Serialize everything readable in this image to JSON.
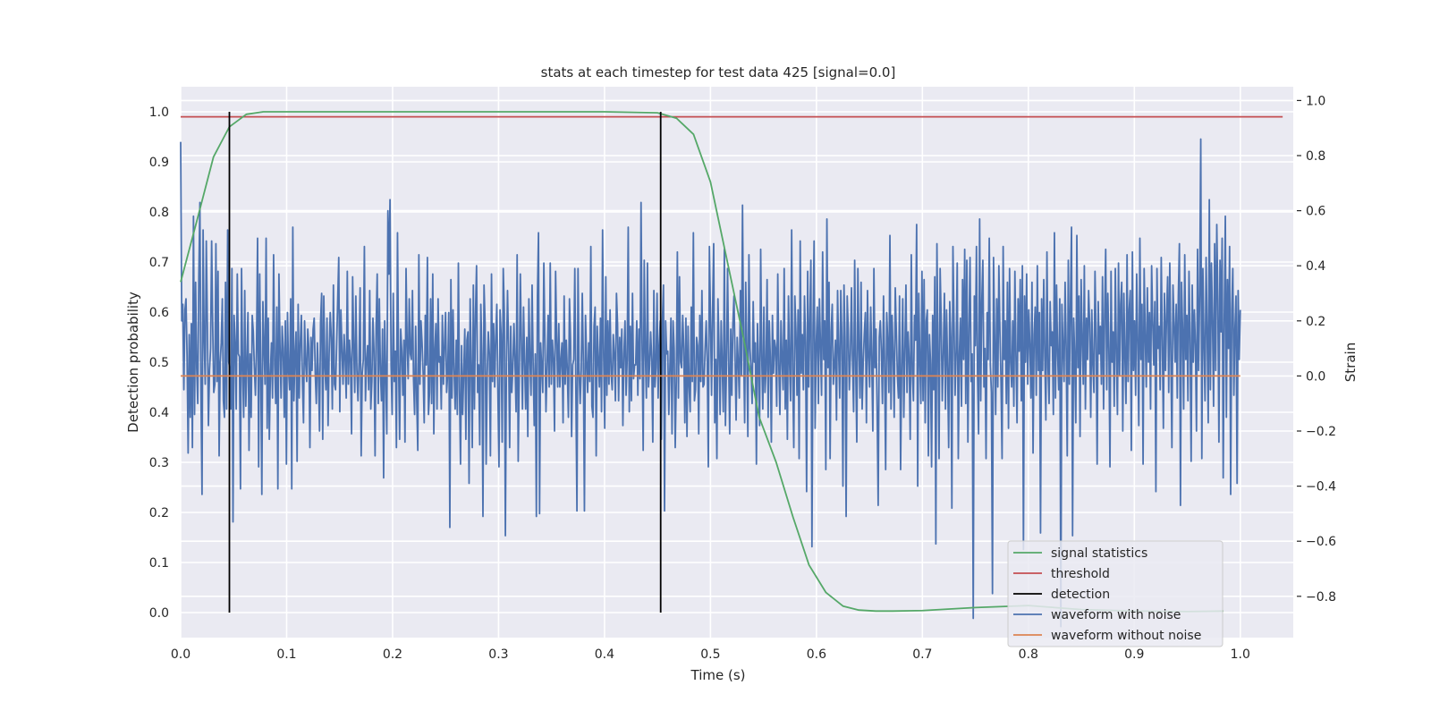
{
  "chart_data": {
    "type": "line",
    "title": "stats at each timestep for test data 425 [signal=0.0]",
    "xlabel": "Time (s)",
    "ylabel_left": "Detection probability",
    "ylabel_right": "Strain",
    "xlim": [
      0.0,
      1.05
    ],
    "ylim_left": [
      -0.05,
      1.05
    ],
    "ylim_right": [
      -0.95,
      1.05
    ],
    "x_ticks": [
      "0.0",
      "0.1",
      "0.2",
      "0.3",
      "0.4",
      "0.5",
      "0.6",
      "0.7",
      "0.8",
      "0.9",
      "1.0"
    ],
    "y_ticks_left": [
      "0.0",
      "0.1",
      "0.2",
      "0.3",
      "0.4",
      "0.5",
      "0.6",
      "0.7",
      "0.8",
      "0.9",
      "1.0"
    ],
    "y_ticks_right": [
      "−0.8",
      "−0.6",
      "−0.4",
      "−0.2",
      "0.0",
      "0.2",
      "0.4",
      "0.6",
      "0.8",
      "1.0"
    ],
    "grid": true,
    "legend_position": "lower-right",
    "legend": [
      {
        "label": "signal statistics",
        "color": "#55a868"
      },
      {
        "label": "threshold",
        "color": "#c44e52"
      },
      {
        "label": "detection",
        "color": "#000000"
      },
      {
        "label": "waveform with noise",
        "color": "#4c72b0"
      },
      {
        "label": "waveform without noise",
        "color": "#dd8452"
      }
    ],
    "series": [
      {
        "name": "signal statistics",
        "axis": "left",
        "color": "#55a868",
        "x": [
          0.0,
          0.015,
          0.031,
          0.046,
          0.062,
          0.078,
          0.1,
          0.2,
          0.3,
          0.4,
          0.45,
          0.468,
          0.484,
          0.5,
          0.515,
          0.531,
          0.546,
          0.562,
          0.578,
          0.593,
          0.609,
          0.625,
          0.64,
          0.656,
          0.672,
          0.7,
          0.75,
          0.8,
          0.85,
          0.9,
          0.95,
          0.984
        ],
        "values": [
          0.66,
          0.78,
          0.91,
          0.97,
          0.995,
          1.0,
          1.0,
          1.0,
          1.0,
          1.0,
          0.998,
          0.987,
          0.955,
          0.86,
          0.71,
          0.55,
          0.39,
          0.3,
          0.19,
          0.095,
          0.04,
          0.013,
          0.005,
          0.003,
          0.003,
          0.004,
          0.01,
          0.014,
          0.006,
          0.003,
          0.002,
          0.003
        ]
      },
      {
        "name": "threshold",
        "axis": "left",
        "color": "#c44e52",
        "x": [
          0.0,
          1.04
        ],
        "values": [
          0.99,
          0.99
        ]
      },
      {
        "name": "waveform with noise",
        "axis": "right",
        "color": "#4c72b0",
        "x_start": 0.0,
        "x_end": 1.0,
        "values": [
          0.85,
          0.2,
          0.26,
          -0.05,
          0.24,
          0.28,
          0.07,
          -0.28,
          0.15,
          -0.15,
          0.19,
          -0.26,
          0.58,
          -0.14,
          0.34,
          0.03,
          -0.1,
          0.36,
          0.63,
          -0.06,
          -0.43,
          0.53,
          0.14,
          -0.03,
          0.49,
          0.19,
          -0.18,
          0.02,
          0.1,
          0.49,
          0.18,
          -0.06,
          -0.03,
          0.48,
          -0.02,
          0.38,
          -0.29,
          0.05,
          0.12,
          0.28,
          -0.09,
          -0.15,
          0.34,
          -0.12,
          0.53,
          0.05,
          0.03,
          -0.12,
          0.39,
          -0.53,
          0.22,
          0.12,
          -0.12,
          0.37,
          0.08,
          0.07,
          -0.41,
          0.39,
          0.03,
          -0.15,
          0.31,
          -0.11,
          0.05,
          0.23,
          -0.27,
          0.08,
          -0.15,
          0.22,
          0.16,
          0.03,
          -0.07,
          0.1,
          0.5,
          -0.33,
          0.37,
          0.02,
          -0.43,
          0.27,
          0.11,
          -0.03,
          0.5,
          -0.19,
          0.21,
          -0.23,
          0.01,
          0.12,
          -0.08,
          0.44,
          0.04,
          -0.1,
          0.25,
          -0.41,
          0.37,
          0.11,
          -0.08,
          0.18,
          0.1,
          -0.15,
          0.2,
          -0.32,
          0.23,
          0.02,
          -0.05,
          0.28,
          -0.41,
          0.54,
          -0.09,
          0.07,
          0.16,
          -0.31,
          0.26,
          -0.08,
          0.12,
          0.22,
          -0.02,
          -0.17,
          0.2,
          0.05,
          -0.02,
          0.17,
          0.1,
          -0.26,
          0.14,
          0.02,
          0.17,
          0.21,
          0.01,
          -0.1,
          0.12,
          0.0,
          -0.2,
          0.2,
          0.3,
          -0.23,
          0.29,
          0.03,
          -0.05,
          0.21,
          -0.18,
          0.08,
          0.23,
          0.14,
          -0.12,
          0.33,
          -0.03,
          -0.05,
          0.11,
          0.27,
          0.43,
          -0.13,
          0.24,
          0.1,
          -0.03,
          0.15,
          0.06,
          -0.08,
          0.38,
          -0.03,
          0.13,
          0.06,
          -0.21,
          0.36,
          0.11,
          -0.06,
          0.29,
          0.02,
          -0.09,
          0.05,
          0.32,
          -0.29,
          0.01,
          0.06,
          0.47,
          -0.09,
          0.05,
          0.11,
          -0.05,
          0.31,
          -0.12,
          -0.02,
          0.21,
          0.09,
          -0.29,
          0.18,
          0.37,
          -0.1,
          0.28,
          0.02,
          -0.09,
          0.17,
          -0.37,
          0.2,
          0.0,
          -0.21,
          0.6,
          0.37,
          0.64,
          0.04,
          -0.14,
          0.3,
          -0.02,
          0.09,
          -0.26,
          0.52,
          0.05,
          -0.23,
          0.17,
          0.09,
          -0.07,
          0.13,
          -0.24,
          0.39,
          0.12,
          -0.01,
          0.28,
          0.08,
          0.06,
          0.31,
          -0.01,
          -0.14,
          0.18,
          -0.09,
          -0.27,
          0.44,
          -0.03,
          0.2,
          0.12,
          0.01,
          -0.17,
          0.22,
          0.04,
          0.43,
          -0.14,
          -0.06,
          0.28,
          -0.1,
          0.37,
          -0.21,
          0.1,
          0.19,
          -0.12,
          0.28,
          0.05,
          0.07,
          -0.12,
          0.22,
          -0.03,
          0.11,
          0.23,
          -0.06,
          0.01,
          0.23,
          -0.55,
          0.35,
          -0.08,
          0.24,
          0.02,
          -0.12,
          0.13,
          -0.14,
          0.41,
          -0.05,
          -0.32,
          0.11,
          -0.14,
          0.01,
          0.17,
          -0.23,
          0.13,
          0.16,
          -0.39,
          0.28,
          0.04,
          -0.26,
          0.33,
          -0.12,
          0.22,
          0.4,
          -0.06,
          0.04,
          -0.25,
          0.26,
          0.08,
          -0.51,
          0.33,
          0.19,
          -0.32,
          0.01,
          0.16,
          0.08,
          -0.29,
          0.37,
          -0.02,
          0.19,
          -0.04,
          0.14,
          0.26,
          -0.06,
          -0.33,
          0.24,
          0.15,
          -0.24,
          0.39,
          0.23,
          -0.58,
          0.06,
          0.31,
          0.1,
          -0.26,
          0.18,
          -0.06,
          0.03,
          0.19,
          0.05,
          -0.13,
          0.44,
          -0.31,
          0.01,
          0.37,
          0.12,
          -0.12,
          0.25,
          0.05,
          -0.12,
          0.14,
          -0.22,
          0.28,
          0.06,
          -0.07,
          0.33,
          0.04,
          -0.18,
          0.08,
          -0.51,
          0.29,
          0.52,
          -0.5,
          0.12,
          0.03,
          -0.06,
          0.41,
          0.13,
          -0.13,
          0.03,
          0.22,
          -0.04,
          0.41,
          -0.03,
          0.13,
          0.06,
          -0.2,
          0.38,
          0.14,
          -0.04,
          0.19,
          -0.04,
          0.06,
          0.12,
          -0.17,
          0.29,
          -0.03,
          0.13,
          0.02,
          -0.15,
          0.28,
          0.13,
          -0.22,
          0.04,
          0.06,
          0.39,
          -0.06,
          -0.49,
          0.39,
          0.02,
          -0.1,
          0.02,
          0.3,
          0.05,
          -0.49,
          0.22,
          0.06,
          -0.06,
          0.12,
          -0.02,
          0.47,
          -0.11,
          -0.15,
          0.18,
          0.25,
          -0.29,
          0.18,
          0.06,
          -0.04,
          0.21,
          -0.13,
          0.53,
          0.07,
          -0.19,
          0.36,
          -0.07,
          0.2,
          -0.03,
          0.24,
          0.01,
          -0.05,
          0.15,
          0.08,
          -0.09,
          0.3,
          0.19,
          -0.09,
          0.14,
          0.03,
          0.17,
          -0.18,
          0.08,
          0.2,
          -0.07,
          0.06,
          0.54,
          -0.13,
          0.18,
          -0.09,
          0.3,
          -0.01,
          0.04,
          0.04,
          0.2,
          -0.07,
          0.17,
          -0.01,
          0.63,
          0.11,
          -0.27,
          0.42,
          0.09,
          -0.08,
          0.41,
          -0.04,
          0.04,
          0.16,
          0.06,
          -0.24,
          0.31,
          -0.04,
          0.03,
          0.3,
          -0.08,
          0.11,
          0.2,
          -0.23,
          0.2,
          0.33,
          -0.49,
          0.2,
          0.08,
          0.09,
          -0.14,
          0.03,
          0.21,
          -0.21,
          0.2,
          0.1,
          -0.26,
          -0.02,
          0.45,
          -0.08,
          0.36,
          0.05,
          0.03,
          0.22,
          0.1,
          -0.17,
          0.21,
          -0.22,
          0.18,
          -0.04,
          -0.13,
          0.25,
          -0.02,
          0.52,
          -0.09,
          -0.05,
          0.14,
          0.11,
          -0.21,
          0.22,
          -0.02,
          0.31,
          -0.04,
          -0.03,
          0.1,
          0.2,
          0.05,
          -0.33,
          0.47,
          0.22,
          -0.07,
          0.24,
          0.48,
          -0.17,
          0.06,
          -0.3,
          0.28,
          0.1,
          -0.14,
          0.2,
          0.04,
          -0.13,
          0.46,
          -0.18,
          0.04,
          0.39,
          0.06,
          -0.21,
          0.17,
          -0.07,
          0.19,
          0.29,
          0.07,
          -0.16,
          0.14,
          0.05,
          -0.08,
          0.31,
          0.0,
          0.62,
          0.12,
          -0.17,
          0.34,
          0.09,
          -0.22,
          0.44,
          0.1,
          0.02,
          -0.1,
          0.27,
          0.05,
          0.12,
          -0.32,
          0.19,
          0.04,
          -0.18,
          0.46,
          0.07,
          -0.12,
          0.25,
          -0.06,
          0.02,
          0.35,
          -0.15,
          0.2,
          0.07,
          -0.24,
          0.22,
          0.01,
          0.13,
          0.1,
          -0.11,
          0.37,
          0.04,
          -0.14,
          0.2,
          0.06,
          -0.05,
          0.39,
          -0.12,
          0.13,
          -0.23,
          0.29,
          0.05,
          -0.09,
          0.53,
          0.0,
          -0.26,
          0.29,
          0.16,
          -0.07,
          0.24,
          -0.3,
          0.49,
          0.01,
          0.15,
          -0.05,
          0.29,
          0.12,
          -0.42,
          0.38,
          -0.04,
          0.2,
          0.42,
          -0.62,
          0.16,
          0.49,
          -0.19,
          0.11,
          0.25,
          -0.1,
          0.28,
          0.11,
          -0.07,
          0.45,
          0.06,
          0.2,
          -0.34,
          0.57,
          0.03,
          0.34,
          -0.3,
          0.16,
          0.26,
          -0.03,
          0.04,
          0.13,
          -0.16,
          0.31,
          0.09,
          -0.08,
          0.31,
          0.14,
          -0.4,
          0.33,
          0.13,
          -0.51,
          0.29,
          0.17,
          -0.05,
          0.08,
          0.32,
          0.05,
          -0.13,
          0.42,
          0.03,
          -0.24,
          0.39,
          0.11,
          -0.08,
          0.34,
          -0.12,
          0.05,
          0.15,
          0.23,
          -0.17,
          0.31,
          0.07,
          -0.04,
          0.25,
          0.06,
          -0.2,
          0.39,
          0.03,
          0.17,
          -0.11,
          -0.47,
          0.14,
          0.2,
          0.09,
          -0.1,
          0.29,
          0.05,
          -0.34,
          0.23,
          0.12,
          -0.06,
          0.51,
          -0.12,
          0.22,
          0.08,
          -0.15,
          0.32,
          0.16,
          0.0,
          -0.08,
          0.29,
          -0.34,
          0.04,
          0.28,
          -0.15,
          0.09,
          0.33,
          -0.06,
          0.16,
          0.06,
          -0.23,
          0.44,
          0.01,
          -0.09,
          0.22,
          0.13,
          0.55,
          -0.4,
          0.3,
          0.06,
          -0.1,
          0.38,
          -0.09,
          0.35,
          -0.17,
          0.2,
          0.24,
          -0.29,
          0.15,
          0.05,
          -0.33,
          0.22,
          -0.05,
          0.36,
          -0.61,
          0.48,
          0.1,
          -0.3,
          0.39,
          0.2,
          -0.09,
          0.08,
          0.3,
          -0.12,
          0.24,
          0.03,
          -0.26,
          0.27,
          0.14,
          -0.48,
          0.47,
          0.19,
          -0.07,
          0.09,
          0.41,
          -0.3,
          0.08,
          0.21,
          -0.11,
          0.35,
          0.06,
          0.46,
          -0.1,
          0.42,
          -0.24,
          0.17,
          0.43,
          -0.02,
          0.08,
          -0.88,
          0.29,
          0.11,
          0.47,
          0.01,
          -0.21,
          0.57,
          -0.09,
          0.27,
          0.42,
          -0.04,
          0.1,
          -0.3,
          0.23,
          0.06,
          0.5,
          0.04,
          -0.06,
          -0.79,
          0.43,
          0.15,
          -0.14,
          0.28,
          -0.04,
          0.4,
          0.16,
          -0.02,
          -0.3,
          0.47,
          0.06,
          0.2,
          -0.1,
          0.34,
          -0.19,
          0.39,
          0.05,
          -0.04,
          0.2,
          -0.11,
          0.38,
          0.07,
          -0.17,
          0.28,
          0.09,
          0.35,
          -0.09,
          0.4,
          -0.63,
          0.29,
          0.05,
          0.37,
          -0.03,
          0.24,
          0.11,
          -0.08,
          0.34,
          -0.28,
          0.15,
          0.25,
          -0.07,
          0.4,
          0.02,
          0.23,
          -0.57,
          0.28,
          0.02,
          0.35,
          0.07,
          -0.16,
          0.45,
          0.03,
          -0.1,
          0.27,
          0.11,
          0.16,
          -0.14,
          0.52,
          -0.08,
          0.33,
          0.08,
          -0.05,
          0.28,
          -0.91,
          0.26,
          0.11,
          -0.02,
          0.34,
          0.1,
          -0.29,
          0.42,
          -0.03,
          0.26,
          0.54,
          -0.58,
          0.21,
          0.07,
          -0.17,
          0.51,
          0.03,
          0.29,
          -0.22,
          0.35,
          0.13,
          -0.03,
          0.4,
          -0.12,
          0.21,
          0.06,
          0.31,
          0.19,
          -0.15,
          0.24,
          0.04,
          -0.06,
          0.38,
          0.14,
          -0.32,
          0.27,
          0.08,
          0.18,
          -0.03,
          0.36,
          -0.12,
          0.22,
          0.46,
          -0.05,
          0.3,
          0.1,
          -0.33,
          0.38,
          0.05,
          0.16,
          -0.11,
          0.39,
          0.08,
          -0.14,
          0.41,
          0.0,
          0.26,
          0.34,
          -0.2,
          0.3,
          0.07,
          -0.1,
          0.44,
          -0.02,
          0.24,
          0.31,
          -0.27,
          0.45,
          0.02,
          0.2,
          -0.07,
          0.37,
          0.12,
          -0.18,
          0.5,
          0.06,
          0.26,
          -0.32,
          0.39,
          0.15,
          -0.04,
          0.32,
          0.05,
          0.23,
          -0.12,
          0.4,
          0.2,
          0.04,
          0.27,
          -0.42,
          0.39,
          0.1,
          0.18,
          -0.05,
          0.43,
          0.13,
          -0.19,
          0.3,
          0.02,
          0.22,
          0.36,
          -0.06,
          0.41,
          0.08,
          -0.26,
          0.33,
          0.19,
          0.05,
          0.26,
          -0.08,
          0.29,
          0.48,
          -0.47,
          0.34,
          0.17,
          -0.12,
          0.44,
          0.06,
          0.22,
          -0.09,
          0.38,
          0.14,
          -0.31,
          0.33,
          0.05,
          0.24,
          0.11,
          -0.2,
          0.46,
          0.02,
          0.3,
          0.86,
          -0.3,
          0.39,
          0.12,
          -0.09,
          0.43,
          0.15,
          -0.17,
          0.64,
          -0.05,
          0.41,
          0.2,
          -0.11,
          0.48,
          0.02,
          0.55,
          0.28,
          -0.24,
          0.42,
          0.16,
          0.5,
          -0.37,
          0.2,
          0.58,
          -0.15,
          0.35,
          0.1,
          0.47,
          -0.43,
          0.24,
          0.39,
          -0.07,
          0.17,
          0.29,
          -0.39,
          0.31,
          0.06,
          0.24
        ]
      },
      {
        "name": "waveform without noise",
        "axis": "right",
        "color": "#dd8452",
        "x": [
          0.0,
          1.0
        ],
        "values": [
          0.0,
          0.0
        ]
      }
    ],
    "detections": [
      0.046,
      0.453
    ],
    "detection_range_left": [
      0.0,
      1.0
    ]
  }
}
